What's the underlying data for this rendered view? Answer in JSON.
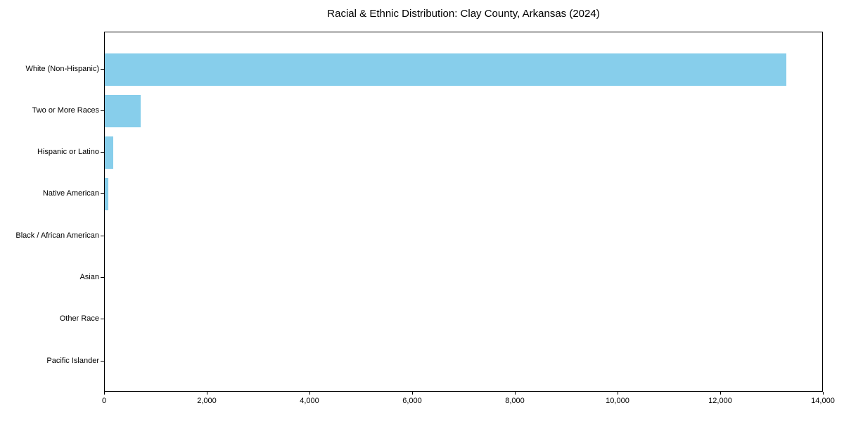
{
  "chart_data": {
    "type": "bar",
    "orientation": "horizontal",
    "title": "Racial & Ethnic Distribution: Clay County, Arkansas (2024)",
    "categories": [
      "White (Non-Hispanic)",
      "Two or More Races",
      "Hispanic or Latino",
      "Native American",
      "Black / African American",
      "Asian",
      "Other Race",
      "Pacific Islander"
    ],
    "values": [
      13300,
      700,
      170,
      70,
      0,
      0,
      0,
      0
    ],
    "xlabel": "",
    "ylabel": "",
    "xlim": [
      0,
      14000
    ],
    "x_ticks": [
      0,
      2000,
      4000,
      6000,
      8000,
      10000,
      12000,
      14000
    ],
    "x_tick_labels": [
      "0",
      "2,000",
      "4,000",
      "6,000",
      "8,000",
      "10,000",
      "12,000",
      "14,000"
    ],
    "bar_color": "#87CEEB",
    "grid": false,
    "legend_position": "none",
    "plot_frame": true
  }
}
